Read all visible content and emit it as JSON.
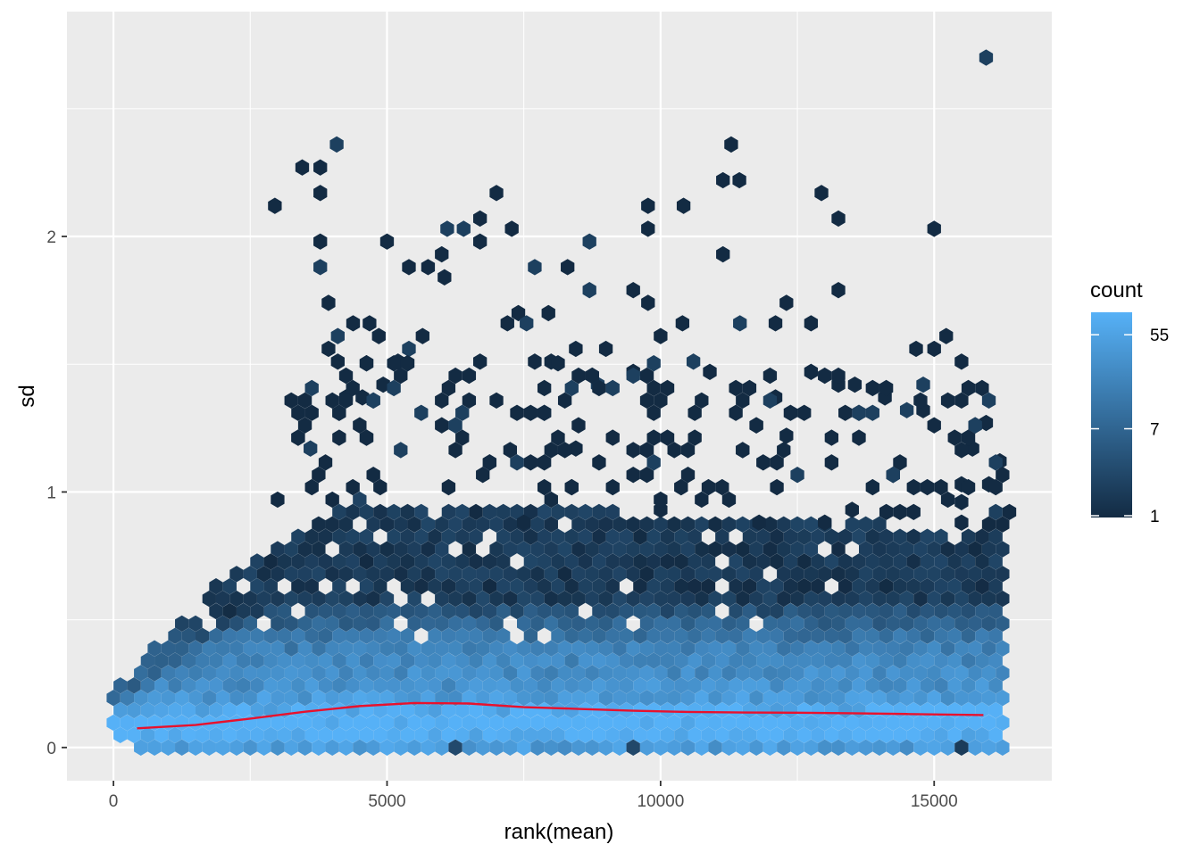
{
  "chart_data": {
    "type": "hexbin",
    "title": "",
    "xlabel": "rank(mean)",
    "ylabel": "sd",
    "xlim": [
      -850,
      17150
    ],
    "ylim": [
      -0.13,
      2.88
    ],
    "x_ticks": [
      {
        "value": 0,
        "label": "0"
      },
      {
        "value": 5000,
        "label": "5000"
      },
      {
        "value": 10000,
        "label": "10000"
      },
      {
        "value": 15000,
        "label": "15000"
      }
    ],
    "y_ticks": [
      {
        "value": 0,
        "label": "0"
      },
      {
        "value": 1,
        "label": "1"
      },
      {
        "value": 2,
        "label": "2"
      }
    ],
    "grid": true,
    "background": "#ebebeb",
    "low_color": "#132b43",
    "high_color": "#56b1f7",
    "fit_line_color": "#e8112d",
    "legend": {
      "title": "count",
      "position": "right",
      "scale": "log",
      "range": [
        1,
        90
      ],
      "ticks": [
        {
          "value": 1,
          "label": "1"
        },
        {
          "value": 7,
          "label": "7"
        },
        {
          "value": 55,
          "label": "55"
        }
      ]
    },
    "smooth_line": [
      {
        "x": 430,
        "y": 0.075
      },
      {
        "x": 1500,
        "y": 0.088
      },
      {
        "x": 2500,
        "y": 0.113
      },
      {
        "x": 3500,
        "y": 0.14
      },
      {
        "x": 4500,
        "y": 0.162
      },
      {
        "x": 5500,
        "y": 0.174
      },
      {
        "x": 6500,
        "y": 0.172
      },
      {
        "x": 7500,
        "y": 0.158
      },
      {
        "x": 8500,
        "y": 0.151
      },
      {
        "x": 9500,
        "y": 0.144
      },
      {
        "x": 10500,
        "y": 0.139
      },
      {
        "x": 11500,
        "y": 0.137
      },
      {
        "x": 12500,
        "y": 0.136
      },
      {
        "x": 13500,
        "y": 0.134
      },
      {
        "x": 14500,
        "y": 0.131
      },
      {
        "x": 15900,
        "y": 0.127
      }
    ],
    "outlier_points": [
      [
        15950,
        2.7
      ],
      [
        4080,
        2.36
      ],
      [
        11290,
        2.36
      ],
      [
        3450,
        2.27
      ],
      [
        3780,
        2.27
      ],
      [
        11140,
        2.22
      ],
      [
        11440,
        2.22
      ],
      [
        3780,
        2.17
      ],
      [
        12940,
        2.17
      ],
      [
        7000,
        2.17
      ],
      [
        2950,
        2.12
      ],
      [
        9770,
        2.12
      ],
      [
        10420,
        2.12
      ],
      [
        13250,
        2.07
      ],
      [
        6700,
        2.07
      ],
      [
        6400,
        2.03
      ],
      [
        6100,
        2.03
      ],
      [
        7280,
        2.03
      ],
      [
        9770,
        2.03
      ],
      [
        15000,
        2.03
      ],
      [
        5000,
        1.98
      ],
      [
        3780,
        1.98
      ],
      [
        8700,
        1.98
      ],
      [
        6700,
        1.98
      ],
      [
        11140,
        1.93
      ],
      [
        6000,
        1.93
      ],
      [
        5400,
        1.88
      ],
      [
        5750,
        1.88
      ],
      [
        3780,
        1.88
      ],
      [
        7700,
        1.88
      ],
      [
        8300,
        1.88
      ],
      [
        6050,
        1.84
      ],
      [
        8700,
        1.79
      ],
      [
        13250,
        1.79
      ],
      [
        9500,
        1.79
      ],
      [
        3930,
        1.74
      ],
      [
        9770,
        1.74
      ],
      [
        12300,
        1.74
      ],
      [
        7950,
        1.7
      ],
      [
        7400,
        1.7
      ],
      [
        4380,
        1.66
      ],
      [
        4680,
        1.66
      ],
      [
        7200,
        1.66
      ],
      [
        7550,
        1.66
      ],
      [
        10400,
        1.66
      ],
      [
        11450,
        1.66
      ],
      [
        12100,
        1.66
      ],
      [
        12750,
        1.66
      ],
      [
        4100,
        1.61
      ],
      [
        4850,
        1.61
      ],
      [
        5650,
        1.61
      ],
      [
        10000,
        1.61
      ],
      [
        15220,
        1.61
      ],
      [
        3930,
        1.56
      ],
      [
        5400,
        1.56
      ],
      [
        8450,
        1.56
      ],
      [
        9000,
        1.56
      ],
      [
        14670,
        1.56
      ],
      [
        15000,
        1.56
      ],
      [
        4100,
        1.51
      ],
      [
        5200,
        1.51
      ],
      [
        6700,
        1.51
      ],
      [
        7700,
        1.51
      ],
      [
        8000,
        1.51
      ],
      [
        10600,
        1.51
      ],
      [
        15500,
        1.51
      ],
      [
        9500,
        1.47
      ],
      [
        10900,
        1.47
      ],
      [
        12750,
        1.47
      ],
      [
        4930,
        1.42
      ],
      [
        8850,
        1.42
      ],
      [
        13250,
        1.42
      ],
      [
        13550,
        1.42
      ],
      [
        14800,
        1.42
      ],
      [
        4250,
        1.37
      ],
      [
        4550,
        1.37
      ],
      [
        12100,
        1.37
      ],
      [
        14100,
        1.37
      ],
      [
        14500,
        1.32
      ],
      [
        14800,
        1.32
      ],
      [
        15950,
        1.27
      ],
      [
        12300,
        1.22
      ],
      [
        3600,
        1.17
      ],
      [
        8450,
        1.17
      ],
      [
        15700,
        1.17
      ],
      [
        16200,
        1.12
      ],
      [
        15500,
        1.03
      ],
      [
        16000,
        1.03
      ],
      [
        15500,
        0.96
      ],
      [
        13500,
        0.93
      ],
      [
        15500,
        0.88
      ],
      [
        11800,
        0.88
      ],
      [
        7500,
        0.88
      ],
      [
        13000,
        0.88
      ],
      [
        10000,
        0.93
      ]
    ]
  }
}
